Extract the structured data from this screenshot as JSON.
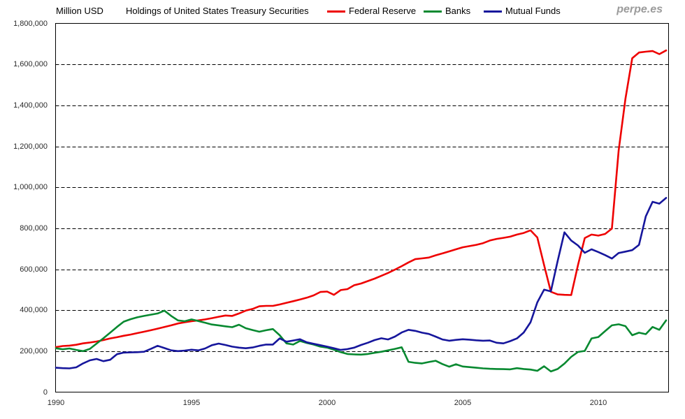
{
  "header": {
    "units_label": "Million USD",
    "title": "Holdings of United States Treasury Securities",
    "watermark": "perpe.es"
  },
  "legend": [
    {
      "label": "Federal Reserve",
      "color": "#ee0000"
    },
    {
      "label": "Banks",
      "color": "#078930"
    },
    {
      "label": "Mutual Funds",
      "color": "#16169c"
    }
  ],
  "chart_data": {
    "type": "line",
    "title": "Holdings of United States Treasury Securities",
    "ylabel": "Million USD",
    "xlabel": "",
    "ylim": [
      0,
      1800000
    ],
    "xlim": [
      1990,
      2012.6
    ],
    "grid": "horizontal-dashed",
    "legend_position": "top",
    "x_unit": "year (quarterly data)",
    "x": [
      1990,
      1990.25,
      1990.5,
      1990.75,
      1991,
      1991.25,
      1991.5,
      1991.75,
      1992,
      1992.25,
      1992.5,
      1992.75,
      1993,
      1993.25,
      1993.5,
      1993.75,
      1994,
      1994.25,
      1994.5,
      1994.75,
      1995,
      1995.25,
      1995.5,
      1995.75,
      1996,
      1996.25,
      1996.5,
      1996.75,
      1997,
      1997.25,
      1997.5,
      1997.75,
      1998,
      1998.25,
      1998.5,
      1998.75,
      1999,
      1999.25,
      1999.5,
      1999.75,
      2000,
      2000.25,
      2000.5,
      2000.75,
      2001,
      2001.25,
      2001.5,
      2001.75,
      2002,
      2002.25,
      2002.5,
      2002.75,
      2003,
      2003.25,
      2003.5,
      2003.75,
      2004,
      2004.25,
      2004.5,
      2004.75,
      2005,
      2005.25,
      2005.5,
      2005.75,
      2006,
      2006.25,
      2006.5,
      2006.75,
      2007,
      2007.25,
      2007.5,
      2007.75,
      2008,
      2008.25,
      2008.5,
      2008.75,
      2009,
      2009.25,
      2009.5,
      2009.75,
      2010,
      2010.25,
      2010.5,
      2010.75,
      2011,
      2011.25,
      2011.5,
      2011.75,
      2012,
      2012.25,
      2012.5
    ],
    "series": [
      {
        "name": "Federal Reserve",
        "color": "#ee0000",
        "values": [
          220000,
          225000,
          227000,
          231000,
          238000,
          242000,
          247000,
          254000,
          262000,
          268000,
          275000,
          281000,
          288000,
          295000,
          302000,
          310000,
          318000,
          326000,
          335000,
          341000,
          346000,
          350000,
          355000,
          361000,
          368000,
          374000,
          372000,
          384000,
          398000,
          406000,
          419000,
          421000,
          421000,
          428000,
          436000,
          444000,
          452000,
          461000,
          472000,
          489000,
          491000,
          475000,
          498000,
          503000,
          522000,
          530000,
          542000,
          554000,
          568000,
          582000,
          598000,
          615000,
          633000,
          649000,
          653000,
          657000,
          668000,
          677000,
          687000,
          697000,
          707000,
          713000,
          719000,
          727000,
          740000,
          748000,
          753000,
          759000,
          769000,
          777000,
          790000,
          755000,
          620000,
          490000,
          477000,
          475000,
          474000,
          620000,
          752000,
          769000,
          764000,
          772000,
          798000,
          1180000,
          1432000,
          1630000,
          1658000,
          1662000,
          1665000,
          1650000,
          1668000
        ]
      },
      {
        "name": "Banks",
        "color": "#078930",
        "values": [
          214000,
          209000,
          213000,
          206000,
          200000,
          211000,
          237000,
          263000,
          290000,
          318000,
          344000,
          356000,
          365000,
          372000,
          378000,
          384000,
          398000,
          372000,
          350000,
          346000,
          355000,
          347000,
          339000,
          330000,
          326000,
          321000,
          317000,
          329000,
          312000,
          303000,
          295000,
          302000,
          308000,
          278000,
          238000,
          232000,
          250000,
          240000,
          232000,
          222000,
          217000,
          207000,
          195000,
          186000,
          184000,
          183000,
          186000,
          192000,
          197000,
          204000,
          211000,
          219000,
          148000,
          143000,
          140000,
          147000,
          153000,
          137000,
          124000,
          136000,
          125000,
          122000,
          119000,
          116000,
          114000,
          113000,
          112000,
          111000,
          117000,
          113000,
          110000,
          104000,
          126000,
          101000,
          113000,
          139000,
          172000,
          196000,
          201000,
          262000,
          269000,
          298000,
          326000,
          331000,
          322000,
          278000,
          290000,
          283000,
          318000,
          304000,
          350000
        ]
      },
      {
        "name": "Mutual Funds",
        "color": "#16169c",
        "values": [
          119000,
          117000,
          116000,
          121000,
          140000,
          155000,
          162000,
          151000,
          158000,
          185000,
          193000,
          194000,
          195000,
          197000,
          211000,
          226000,
          215000,
          204000,
          200000,
          203000,
          207000,
          204000,
          213000,
          229000,
          237000,
          230000,
          222000,
          217000,
          214000,
          218000,
          226000,
          232000,
          232000,
          262000,
          246000,
          252000,
          258000,
          243000,
          236000,
          229000,
          222000,
          214000,
          206000,
          210000,
          217000,
          230000,
          241000,
          254000,
          263000,
          257000,
          271000,
          291000,
          304000,
          299000,
          290000,
          284000,
          271000,
          257000,
          251000,
          255000,
          258000,
          256000,
          253000,
          251000,
          252000,
          241000,
          238000,
          249000,
          262000,
          291000,
          341000,
          438000,
          500000,
          492000,
          640000,
          780000,
          740000,
          716000,
          680000,
          697000,
          684000,
          669000,
          652000,
          679000,
          686000,
          693000,
          719000,
          858000,
          929000,
          920000,
          948000
        ]
      }
    ],
    "y_ticks": [
      {
        "value": 0,
        "label": "0"
      },
      {
        "value": 200000,
        "label": "200,000"
      },
      {
        "value": 400000,
        "label": "400,000"
      },
      {
        "value": 600000,
        "label": "600,000"
      },
      {
        "value": 800000,
        "label": "800,000"
      },
      {
        "value": 1000000,
        "label": "1,000,000"
      },
      {
        "value": 1200000,
        "label": "1,200,000"
      },
      {
        "value": 1400000,
        "label": "1,400,000"
      },
      {
        "value": 1600000,
        "label": "1,600,000"
      },
      {
        "value": 1800000,
        "label": "1,800,000"
      }
    ],
    "x_ticks": [
      {
        "value": 1990,
        "label": "1990"
      },
      {
        "value": 1995,
        "label": "1995"
      },
      {
        "value": 2000,
        "label": "2000"
      },
      {
        "value": 2005,
        "label": "2005"
      },
      {
        "value": 2010,
        "label": "2010"
      }
    ]
  }
}
